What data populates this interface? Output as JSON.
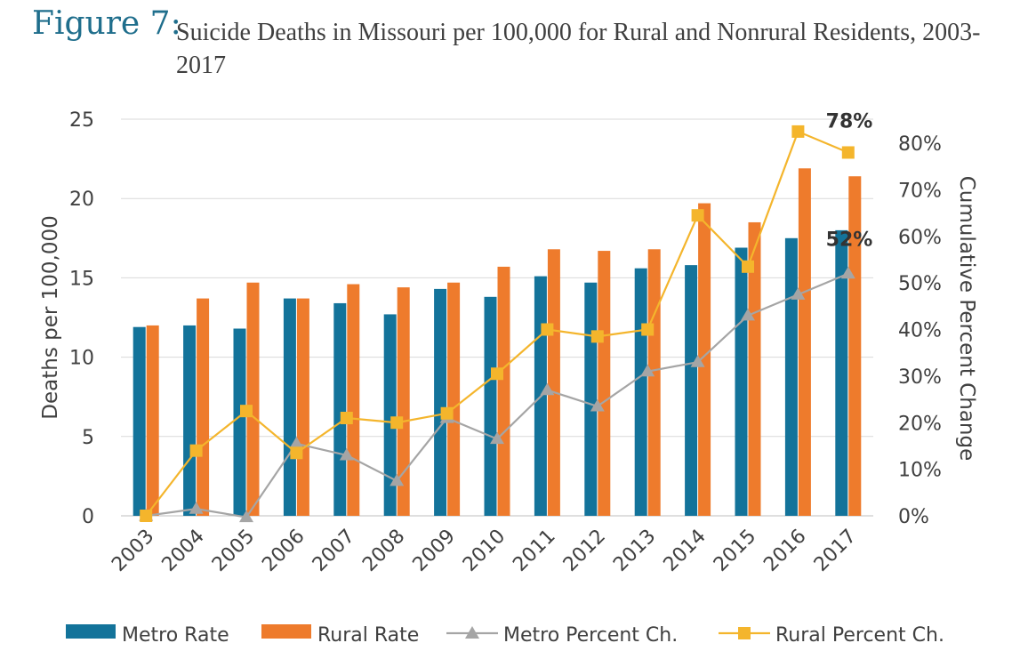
{
  "figure_label": "Figure 7:",
  "figure_title": "Suicide Deaths in Missouri per 100,000 for Rural and Nonrural Residents, 2003-2017",
  "colors": {
    "metro_rate": "#13739a",
    "rural_rate": "#ee7b2c",
    "metro_pct": "#a5a5a5",
    "rural_pct": "#f4b52c",
    "label_teal": "#1f6e8c",
    "text": "#404040",
    "grid": "#d9d9d9"
  },
  "chart_data": {
    "type": "bar",
    "categories": [
      "2003",
      "2004",
      "2005",
      "2006",
      "2007",
      "2008",
      "2009",
      "2010",
      "2011",
      "2012",
      "2013",
      "2014",
      "2015",
      "2016",
      "2017"
    ],
    "series": [
      {
        "name": "Metro Rate",
        "axis": "left",
        "type": "bar",
        "values": [
          11.9,
          12.0,
          11.8,
          13.7,
          13.4,
          12.7,
          14.3,
          13.8,
          15.1,
          14.7,
          15.6,
          15.8,
          16.9,
          17.5,
          18.0
        ]
      },
      {
        "name": "Rural Rate",
        "axis": "left",
        "type": "bar",
        "values": [
          12.0,
          13.7,
          14.7,
          13.7,
          14.6,
          14.4,
          14.7,
          15.7,
          16.8,
          16.7,
          16.8,
          19.7,
          18.5,
          21.9,
          21.4
        ]
      },
      {
        "name": "Metro Percent Ch.",
        "axis": "right",
        "type": "line",
        "marker": "triangle",
        "values": [
          0.0,
          0.015,
          -0.003,
          0.155,
          0.13,
          0.075,
          0.21,
          0.165,
          0.27,
          0.235,
          0.31,
          0.33,
          0.43,
          0.475,
          0.52
        ]
      },
      {
        "name": "Rural Percent Ch.",
        "axis": "right",
        "type": "line",
        "marker": "square",
        "values": [
          0.0,
          0.14,
          0.225,
          0.135,
          0.21,
          0.2,
          0.22,
          0.305,
          0.4,
          0.385,
          0.4,
          0.645,
          0.535,
          0.825,
          0.78
        ]
      }
    ],
    "ylabel": "Deaths per 100,000",
    "ylim": [
      0,
      25
    ],
    "yticks": [
      "0",
      "5",
      "10",
      "15",
      "20",
      "25"
    ],
    "y2label": "Cumulative Percent Change",
    "y2lim": [
      0,
      0.85
    ],
    "y2ticks": [
      "0%",
      "10%",
      "20%",
      "30%",
      "40%",
      "50%",
      "60%",
      "70%",
      "80%"
    ],
    "annotations": [
      {
        "text": "78%",
        "series": "Rural Percent Ch.",
        "category": "2017"
      },
      {
        "text": "52%",
        "series": "Metro Percent Ch.",
        "category": "2017"
      }
    ],
    "grid": true,
    "legend_position": "bottom"
  }
}
